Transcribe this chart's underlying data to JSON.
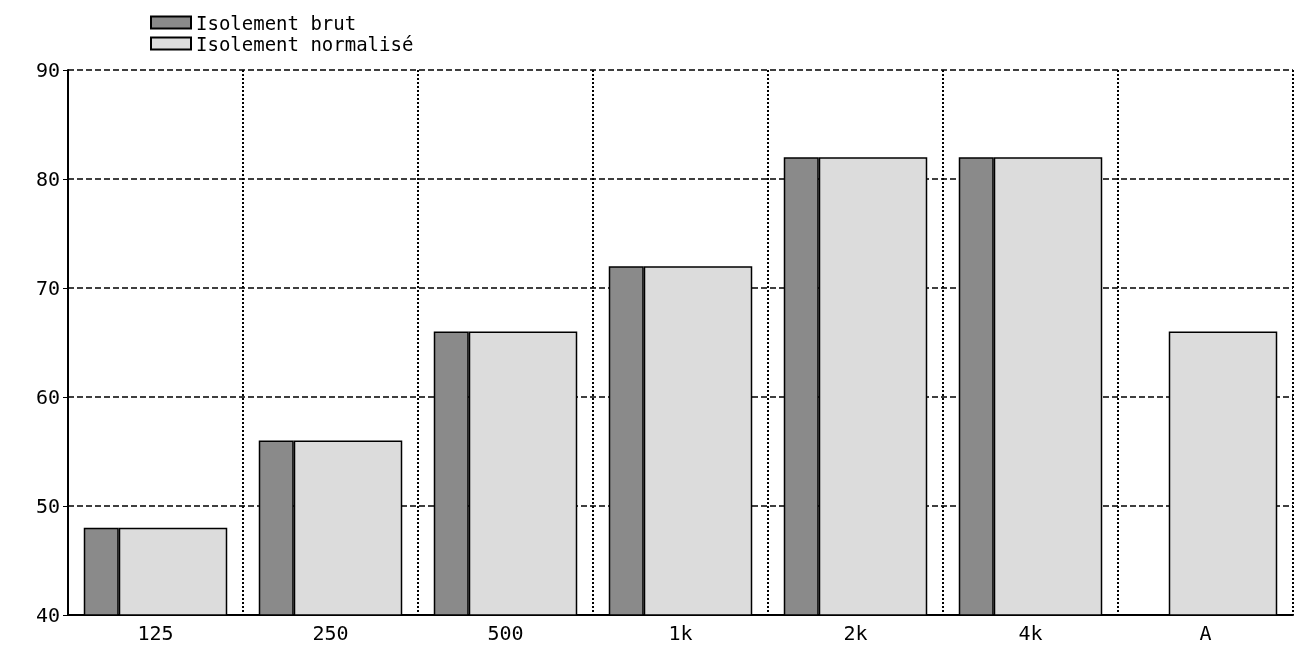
{
  "chart_data": {
    "type": "bar",
    "categories": [
      "125",
      "250",
      "500",
      "1k",
      "2k",
      "4k",
      "A"
    ],
    "series": [
      {
        "name": "Isolement brut",
        "color": "#8a8a8a",
        "values": [
          48,
          56,
          66,
          72,
          82,
          82,
          null
        ]
      },
      {
        "name": "Isolement normalisé",
        "color": "#dcdcdc",
        "values": [
          48,
          56,
          66,
          72,
          82,
          82,
          66
        ]
      }
    ],
    "ylim": [
      40,
      90
    ],
    "yticks": [
      40,
      50,
      60,
      70,
      80,
      90
    ],
    "grid": true,
    "legend": "top left"
  }
}
